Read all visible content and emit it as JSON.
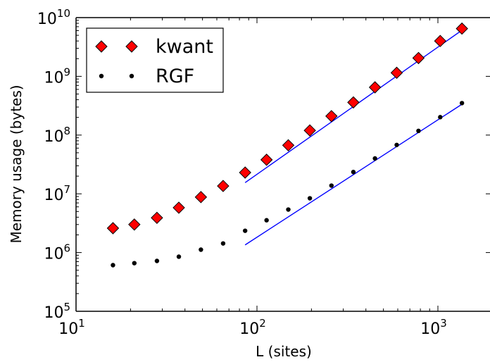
{
  "chart_data": {
    "type": "scatter",
    "xlabel": "L (sites)",
    "ylabel": "Memory usage (bytes)",
    "xscale": "log",
    "yscale": "log",
    "xlim": [
      10,
      1500
    ],
    "ylim": [
      100000,
      10000000000
    ],
    "x_ticks": [
      {
        "base": "10",
        "exp": "1",
        "value": 10
      },
      {
        "base": "10",
        "exp": "2",
        "value": 100
      },
      {
        "base": "10",
        "exp": "3",
        "value": 1000
      }
    ],
    "y_ticks": [
      {
        "base": "10",
        "exp": "5",
        "value": 100000
      },
      {
        "base": "10",
        "exp": "6",
        "value": 1000000
      },
      {
        "base": "10",
        "exp": "7",
        "value": 10000000
      },
      {
        "base": "10",
        "exp": "8",
        "value": 100000000
      },
      {
        "base": "10",
        "exp": "9",
        "value": 1000000000
      },
      {
        "base": "10",
        "exp": "10",
        "value": 10000000000
      }
    ],
    "legend_position": "top-left",
    "series": [
      {
        "name": "kwant",
        "marker": "diamond",
        "color": "#ff0000",
        "edge_color": "#000000",
        "x": [
          16,
          21,
          28,
          37,
          49,
          65,
          86,
          113,
          149,
          196,
          258,
          341,
          449,
          592,
          781,
          1030,
          1358
        ],
        "y": [
          2600000,
          3000000,
          3900000,
          5800000,
          8800000,
          13600000,
          23000000,
          38000000,
          67000000,
          120000000,
          210000000,
          360000000,
          650000000,
          1150000000,
          2050000000,
          4000000000,
          6500000000
        ]
      },
      {
        "name": "RGF",
        "marker": "dot",
        "color": "#000000",
        "x": [
          16,
          21,
          28,
          37,
          49,
          65,
          86,
          113,
          149,
          196,
          258,
          341,
          449,
          592,
          781,
          1030,
          1358
        ],
        "y": [
          610000,
          660000,
          720000,
          850000,
          1120000,
          1430000,
          2350000,
          3550000,
          5400000,
          8400000,
          13800000,
          23500000,
          40000000,
          68000000,
          118000000,
          202000000,
          350000000
        ]
      }
    ],
    "fit_lines": [
      {
        "color": "#0000ff",
        "x": [
          86,
          1358
        ],
        "y": [
          15500000,
          6100000000
        ]
      },
      {
        "color": "#0000ff",
        "x": [
          86,
          1358
        ],
        "y": [
          1350000,
          335000000
        ]
      }
    ]
  }
}
